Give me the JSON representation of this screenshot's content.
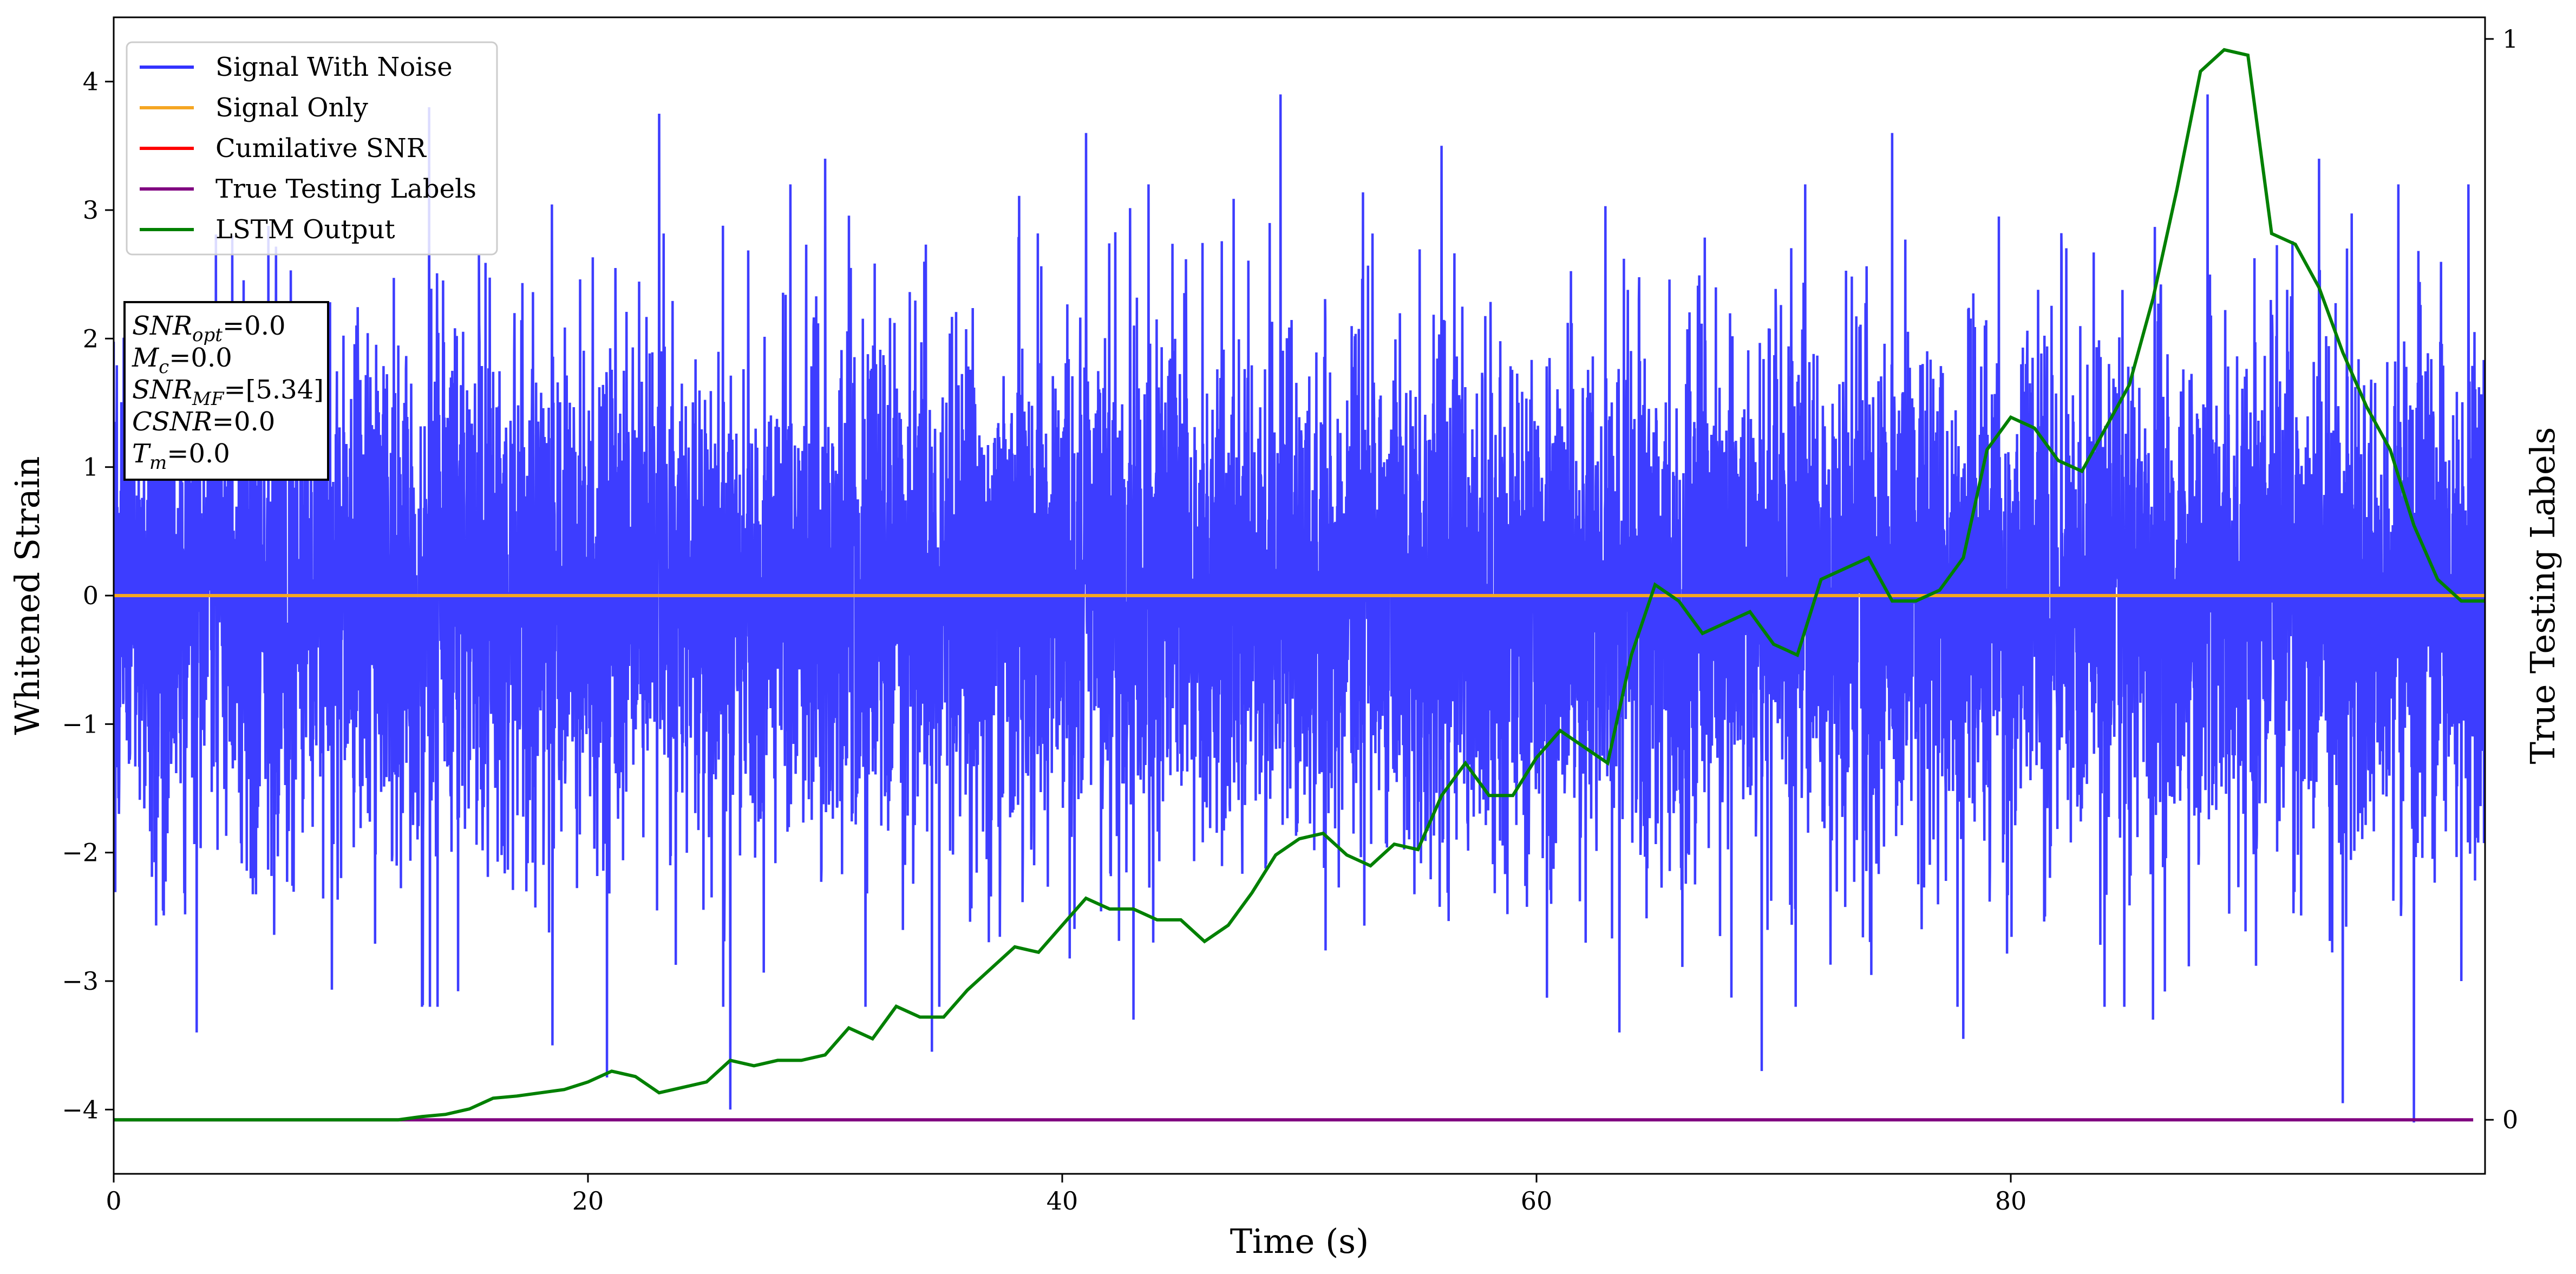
{
  "chart_data": {
    "type": "line",
    "xlabel": "Time (s)",
    "ylabel": "Whitened Strain",
    "ylabel_right": "True Testing Labels",
    "xlim": [
      0,
      100
    ],
    "ylim": [
      -4.5,
      4.5
    ],
    "ylim_right": [
      -0.05,
      1.02
    ],
    "x_ticks": [
      0,
      20,
      40,
      60,
      80
    ],
    "y_ticks": [
      -4,
      -3,
      -2,
      -1,
      0,
      1,
      2,
      3,
      4
    ],
    "y_ticks_right": [
      0,
      1
    ],
    "grid": false,
    "legend_position": "top-left",
    "series": [
      {
        "name": "Signal With Noise",
        "color": "#3333ff",
        "axis": "left",
        "render": "noise",
        "sigma": 1.0,
        "x_range": [
          0,
          100
        ],
        "extremes": [
          [
            13.3,
            3.8
          ],
          [
            23.0,
            3.75
          ],
          [
            41.0,
            3.6
          ],
          [
            49.2,
            3.9
          ],
          [
            88.3,
            3.9
          ],
          [
            26.0,
            -4.0
          ],
          [
            97.0,
            -4.1
          ],
          [
            94.0,
            -3.95
          ],
          [
            20.8,
            -3.75
          ],
          [
            69.5,
            -3.7
          ],
          [
            5.0,
            2.8
          ],
          [
            30.0,
            3.4
          ],
          [
            56.0,
            3.5
          ],
          [
            75.0,
            3.6
          ],
          [
            93.0,
            3.4
          ],
          [
            3.5,
            -3.4
          ],
          [
            13.0,
            -3.2
          ],
          [
            18.5,
            -3.5
          ],
          [
            34.5,
            -3.55
          ],
          [
            43.0,
            -3.3
          ],
          [
            63.5,
            -3.4
          ],
          [
            78.0,
            -3.45
          ],
          [
            86.0,
            -3.3
          ],
          [
            99.0,
            -3.0
          ]
        ]
      },
      {
        "name": "Signal Only",
        "color": "#f5a623",
        "axis": "left",
        "x": [
          0,
          100
        ],
        "y": [
          0,
          0
        ]
      },
      {
        "name": "Cumilative SNR",
        "color": "#ff0000",
        "axis": "left",
        "x": [],
        "y": []
      },
      {
        "name": "True Testing Labels",
        "color": "#800080",
        "axis": "right",
        "x": [
          0,
          99.5
        ],
        "y": [
          0,
          0
        ]
      },
      {
        "name": "LSTM Output",
        "color": "#008000",
        "axis": "right",
        "x": [
          0,
          12,
          13,
          14,
          15,
          16,
          17,
          18,
          19,
          20,
          21,
          22,
          23,
          24,
          25,
          26,
          27,
          28,
          29,
          30,
          31,
          32,
          33,
          34,
          35,
          36,
          37,
          38,
          39,
          40,
          41,
          42,
          43,
          44,
          45,
          46,
          47,
          48,
          49,
          50,
          51,
          52,
          53,
          54,
          55,
          56,
          57,
          58,
          59,
          60,
          61,
          62,
          63,
          64,
          65,
          66,
          67,
          68,
          69,
          70,
          71,
          72,
          73,
          74,
          75,
          76,
          77,
          78,
          79,
          80,
          81,
          82,
          83,
          84,
          85,
          86,
          87,
          88,
          89,
          90,
          91,
          92,
          93,
          94,
          95,
          96,
          97,
          98,
          99,
          100
        ],
        "y": [
          0,
          0,
          0.003,
          0.005,
          0.01,
          0.02,
          0.022,
          0.025,
          0.028,
          0.035,
          0.045,
          0.04,
          0.025,
          0.03,
          0.035,
          0.055,
          0.05,
          0.055,
          0.055,
          0.06,
          0.085,
          0.075,
          0.105,
          0.095,
          0.095,
          0.12,
          0.14,
          0.16,
          0.155,
          0.18,
          0.205,
          0.195,
          0.195,
          0.185,
          0.185,
          0.165,
          0.18,
          0.21,
          0.245,
          0.26,
          0.265,
          0.245,
          0.235,
          0.255,
          0.25,
          0.3,
          0.33,
          0.3,
          0.3,
          0.335,
          0.36,
          0.345,
          0.33,
          0.43,
          0.495,
          0.48,
          0.45,
          0.46,
          0.47,
          0.44,
          0.43,
          0.5,
          0.51,
          0.52,
          0.48,
          0.48,
          0.49,
          0.52,
          0.62,
          0.65,
          0.64,
          0.61,
          0.6,
          0.64,
          0.68,
          0.76,
          0.86,
          0.97,
          0.99,
          0.985,
          0.82,
          0.81,
          0.77,
          0.71,
          0.66,
          0.62,
          0.55,
          0.5,
          0.48,
          0.48
        ]
      }
    ],
    "annotation_box": {
      "lines": [
        {
          "var": "SNR",
          "sub": "opt",
          "value": "=0.0"
        },
        {
          "var": "M",
          "sub": "c",
          "value": "=0.0"
        },
        {
          "var": "SNR",
          "sub": "MF",
          "value": "=[5.34]"
        },
        {
          "var": "CSNR",
          "sub": "",
          "value": "=0.0"
        },
        {
          "var": "T",
          "sub": "m",
          "value": "=0.0"
        }
      ]
    }
  }
}
